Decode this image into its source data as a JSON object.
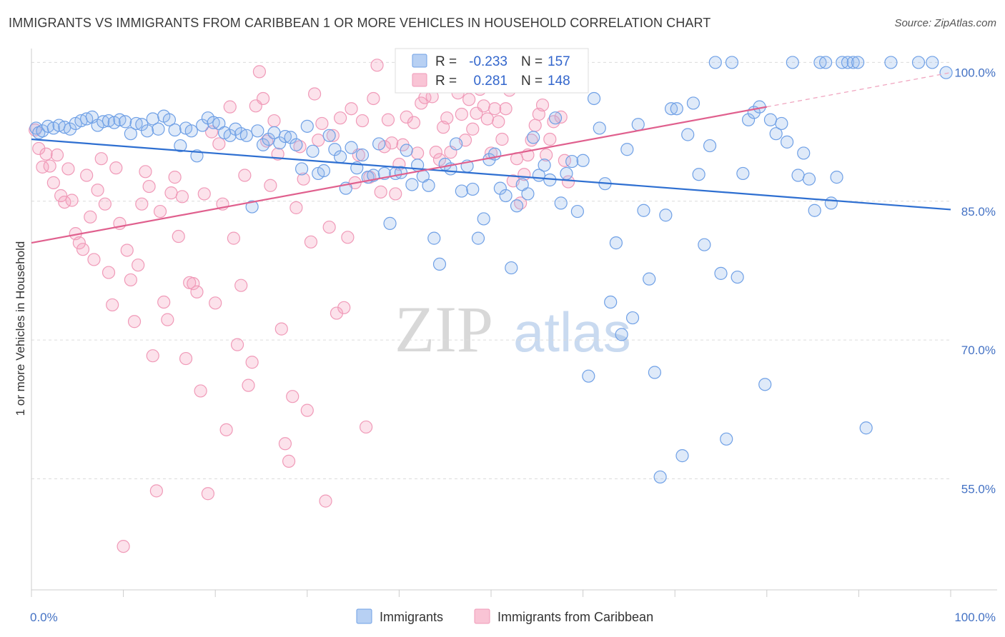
{
  "title": "IMMIGRANTS VS IMMIGRANTS FROM CARIBBEAN 1 OR MORE VEHICLES IN HOUSEHOLD CORRELATION CHART",
  "source": "Source: ZipAtlas.com",
  "watermark": {
    "zip": "ZIP",
    "atlas": "atlas"
  },
  "stats_legend": {
    "r_label": "R =",
    "n_label": "N =",
    "rows": [
      {
        "r": "-0.233",
        "n": "157",
        "color": "#6fa0e6"
      },
      {
        "r": "0.281",
        "n": "148",
        "color": "#f09ab8"
      }
    ]
  },
  "bottom_legend": [
    "Immigrants",
    "Immigrants from Caribbean"
  ],
  "chart_data": {
    "type": "scatter",
    "ylabel": "1 or more Vehicles in Household",
    "xlabel": "",
    "x_ticks": [
      "0.0%",
      "100.0%"
    ],
    "y_ticks": [
      "100.0%",
      "85.0%",
      "70.0%",
      "55.0%"
    ],
    "xlim": [
      0,
      100
    ],
    "ylim": [
      43,
      101.5
    ],
    "colors": {
      "blue": "#4a86d8",
      "pink": "#e86d98",
      "blue_line": "#2e6fd1",
      "pink_line": "#e0608e"
    },
    "series": [
      {
        "name": "Immigrants",
        "trend": [
          [
            0,
            91.7
          ],
          [
            100,
            84.1
          ]
        ],
        "points": [
          [
            0.5,
            92.9
          ],
          [
            0.8,
            92.4
          ],
          [
            1.2,
            92.6
          ],
          [
            1.8,
            93.1
          ],
          [
            2.4,
            92.9
          ],
          [
            3.0,
            93.2
          ],
          [
            3.6,
            93.0
          ],
          [
            4.2,
            92.8
          ],
          [
            4.8,
            93.4
          ],
          [
            5.4,
            93.7
          ],
          [
            6.0,
            93.9
          ],
          [
            6.6,
            94.1
          ],
          [
            7.2,
            93.2
          ],
          [
            7.8,
            93.6
          ],
          [
            8.4,
            93.7
          ],
          [
            9.0,
            93.5
          ],
          [
            9.6,
            93.8
          ],
          [
            10.2,
            93.6
          ],
          [
            10.8,
            92.3
          ],
          [
            11.4,
            93.4
          ],
          [
            12.0,
            93.3
          ],
          [
            12.6,
            92.6
          ],
          [
            13.2,
            93.9
          ],
          [
            13.8,
            92.8
          ],
          [
            14.4,
            94.2
          ],
          [
            15.0,
            93.8
          ],
          [
            15.6,
            92.7
          ],
          [
            16.2,
            91.0
          ],
          [
            16.8,
            92.9
          ],
          [
            17.4,
            92.6
          ],
          [
            18.0,
            89.9
          ],
          [
            18.6,
            93.2
          ],
          [
            19.2,
            94.0
          ],
          [
            19.8,
            93.5
          ],
          [
            20.4,
            93.4
          ],
          [
            21.0,
            92.4
          ],
          [
            21.6,
            92.1
          ],
          [
            22.2,
            92.8
          ],
          [
            22.8,
            92.3
          ],
          [
            23.4,
            92.1
          ],
          [
            24.0,
            84.4
          ],
          [
            24.6,
            92.6
          ],
          [
            25.2,
            91.1
          ],
          [
            25.8,
            91.7
          ],
          [
            26.4,
            92.4
          ],
          [
            27.0,
            91.3
          ],
          [
            27.6,
            92.0
          ],
          [
            28.2,
            91.9
          ],
          [
            28.8,
            91.1
          ],
          [
            29.4,
            88.5
          ],
          [
            30.0,
            93.1
          ],
          [
            30.6,
            90.4
          ],
          [
            31.2,
            88.0
          ],
          [
            31.8,
            88.3
          ],
          [
            32.4,
            92.1
          ],
          [
            33.0,
            90.6
          ],
          [
            33.6,
            89.8
          ],
          [
            34.2,
            86.4
          ],
          [
            34.8,
            90.8
          ],
          [
            35.4,
            88.6
          ],
          [
            36.0,
            90.0
          ],
          [
            36.6,
            87.6
          ],
          [
            37.2,
            87.8
          ],
          [
            37.8,
            91.2
          ],
          [
            38.4,
            88.0
          ],
          [
            39.0,
            82.6
          ],
          [
            39.6,
            88.0
          ],
          [
            40.2,
            88.1
          ],
          [
            40.8,
            90.5
          ],
          [
            41.4,
            86.8
          ],
          [
            42.0,
            88.9
          ],
          [
            42.6,
            87.7
          ],
          [
            43.2,
            86.7
          ],
          [
            43.8,
            81.0
          ],
          [
            44.4,
            78.2
          ],
          [
            45.0,
            89.0
          ],
          [
            45.6,
            88.5
          ],
          [
            46.2,
            91.2
          ],
          [
            46.8,
            86.1
          ],
          [
            47.4,
            88.8
          ],
          [
            48.0,
            86.3
          ],
          [
            48.6,
            81.0
          ],
          [
            49.2,
            83.1
          ],
          [
            49.8,
            89.5
          ],
          [
            50.4,
            90.1
          ],
          [
            51.0,
            86.4
          ],
          [
            51.6,
            85.6
          ],
          [
            52.2,
            77.8
          ],
          [
            52.8,
            84.5
          ],
          [
            53.4,
            86.8
          ],
          [
            54.0,
            85.8
          ],
          [
            54.6,
            91.9
          ],
          [
            55.2,
            87.8
          ],
          [
            55.8,
            88.9
          ],
          [
            56.4,
            87.3
          ],
          [
            57.0,
            94.0
          ],
          [
            57.6,
            84.8
          ],
          [
            58.2,
            88.0
          ],
          [
            58.8,
            89.3
          ],
          [
            59.4,
            83.9
          ],
          [
            60.0,
            89.4
          ],
          [
            60.6,
            66.1
          ],
          [
            61.2,
            96.1
          ],
          [
            61.8,
            92.9
          ],
          [
            62.4,
            86.9
          ],
          [
            63.0,
            74.1
          ],
          [
            63.6,
            80.5
          ],
          [
            64.2,
            70.6
          ],
          [
            64.8,
            90.6
          ],
          [
            65.4,
            72.4
          ],
          [
            66.0,
            93.3
          ],
          [
            66.6,
            84.0
          ],
          [
            67.2,
            76.6
          ],
          [
            67.8,
            66.5
          ],
          [
            68.4,
            55.2
          ],
          [
            69.0,
            83.5
          ],
          [
            69.6,
            95.0
          ],
          [
            70.2,
            95.0
          ],
          [
            70.8,
            57.5
          ],
          [
            71.4,
            92.2
          ],
          [
            72.0,
            95.6
          ],
          [
            72.6,
            87.9
          ],
          [
            73.2,
            80.3
          ],
          [
            73.8,
            91.0
          ],
          [
            74.4,
            100.0
          ],
          [
            75.0,
            77.2
          ],
          [
            75.6,
            59.3
          ],
          [
            76.2,
            100.0
          ],
          [
            76.8,
            76.8
          ],
          [
            77.4,
            88.0
          ],
          [
            78.0,
            93.8
          ],
          [
            78.6,
            94.6
          ],
          [
            79.2,
            95.2
          ],
          [
            79.8,
            65.2
          ],
          [
            80.4,
            93.8
          ],
          [
            81.0,
            92.3
          ],
          [
            81.6,
            93.4
          ],
          [
            82.2,
            91.4
          ],
          [
            82.8,
            100.0
          ],
          [
            83.4,
            87.8
          ],
          [
            84.0,
            90.2
          ],
          [
            84.6,
            87.4
          ],
          [
            85.2,
            84.0
          ],
          [
            85.8,
            100.0
          ],
          [
            86.4,
            100.0
          ],
          [
            87.0,
            84.8
          ],
          [
            87.6,
            87.6
          ],
          [
            88.2,
            100.0
          ],
          [
            88.8,
            100.0
          ],
          [
            89.4,
            100.0
          ],
          [
            89.9,
            100.0
          ],
          [
            90.8,
            60.5
          ],
          [
            93.5,
            100.0
          ],
          [
            96.5,
            100.0
          ],
          [
            98.0,
            100.0
          ],
          [
            99.5,
            98.9
          ]
        ]
      },
      {
        "name": "Immigrants from Caribbean",
        "trend": [
          [
            0,
            80.5
          ],
          [
            80,
            95.2
          ]
        ],
        "trend_dashed": [
          [
            80,
            95.2
          ],
          [
            100,
            98.9
          ]
        ],
        "points": [
          [
            0.4,
            92.7
          ],
          [
            0.8,
            90.7
          ],
          [
            1.2,
            88.7
          ],
          [
            1.6,
            90.1
          ],
          [
            2.0,
            88.8
          ],
          [
            2.4,
            87.0
          ],
          [
            2.8,
            90.0
          ],
          [
            3.2,
            85.6
          ],
          [
            3.6,
            84.9
          ],
          [
            4.0,
            88.5
          ],
          [
            4.4,
            85.1
          ],
          [
            4.8,
            81.5
          ],
          [
            5.2,
            80.5
          ],
          [
            5.6,
            79.8
          ],
          [
            6.0,
            87.8
          ],
          [
            6.4,
            83.3
          ],
          [
            6.8,
            78.7
          ],
          [
            7.2,
            86.2
          ],
          [
            7.6,
            89.6
          ],
          [
            8.0,
            84.7
          ],
          [
            8.4,
            77.3
          ],
          [
            8.8,
            73.8
          ],
          [
            9.2,
            88.6
          ],
          [
            9.6,
            82.6
          ],
          [
            10.0,
            47.7
          ],
          [
            10.4,
            79.7
          ],
          [
            10.8,
            76.5
          ],
          [
            11.2,
            72.0
          ],
          [
            11.6,
            78.1
          ],
          [
            12.0,
            84.7
          ],
          [
            12.4,
            88.2
          ],
          [
            12.8,
            86.6
          ],
          [
            13.2,
            68.3
          ],
          [
            13.6,
            53.7
          ],
          [
            14.0,
            83.9
          ],
          [
            14.4,
            74.1
          ],
          [
            14.8,
            72.2
          ],
          [
            15.2,
            85.9
          ],
          [
            15.6,
            87.6
          ],
          [
            16.0,
            81.2
          ],
          [
            16.4,
            85.5
          ],
          [
            16.8,
            68.0
          ],
          [
            17.2,
            76.2
          ],
          [
            17.6,
            76.1
          ],
          [
            18.0,
            75.2
          ],
          [
            18.4,
            64.5
          ],
          [
            18.8,
            85.8
          ],
          [
            19.2,
            53.4
          ],
          [
            19.6,
            92.5
          ],
          [
            20.0,
            74.0
          ],
          [
            20.4,
            91.2
          ],
          [
            20.8,
            84.7
          ],
          [
            21.2,
            60.3
          ],
          [
            21.6,
            95.2
          ],
          [
            22.0,
            81.0
          ],
          [
            22.4,
            69.5
          ],
          [
            22.8,
            75.9
          ],
          [
            23.2,
            87.8
          ],
          [
            23.6,
            65.1
          ],
          [
            24.0,
            67.6
          ],
          [
            24.4,
            95.3
          ],
          [
            24.8,
            99.0
          ],
          [
            25.2,
            96.1
          ],
          [
            25.6,
            91.5
          ],
          [
            26.0,
            86.7
          ],
          [
            26.4,
            93.7
          ],
          [
            26.8,
            90.1
          ],
          [
            27.2,
            71.2
          ],
          [
            27.6,
            58.8
          ],
          [
            28.0,
            56.9
          ],
          [
            28.4,
            63.9
          ],
          [
            28.8,
            84.3
          ],
          [
            29.2,
            90.9
          ],
          [
            29.6,
            87.4
          ],
          [
            30.0,
            62.4
          ],
          [
            30.4,
            80.6
          ],
          [
            30.8,
            96.6
          ],
          [
            31.2,
            91.6
          ],
          [
            31.6,
            93.4
          ],
          [
            32.0,
            52.6
          ],
          [
            32.4,
            82.2
          ],
          [
            32.8,
            92.1
          ],
          [
            33.2,
            72.9
          ],
          [
            33.6,
            94.0
          ],
          [
            34.0,
            73.5
          ],
          [
            34.4,
            81.1
          ],
          [
            34.8,
            95.0
          ],
          [
            35.2,
            87.0
          ],
          [
            35.6,
            90.0
          ],
          [
            36.0,
            93.7
          ],
          [
            36.4,
            60.6
          ],
          [
            36.8,
            87.6
          ],
          [
            37.2,
            96.1
          ],
          [
            37.6,
            99.7
          ],
          [
            38.0,
            86.0
          ],
          [
            38.4,
            90.9
          ],
          [
            38.8,
            93.8
          ],
          [
            39.2,
            91.3
          ],
          [
            39.6,
            85.8
          ],
          [
            40.0,
            89.0
          ],
          [
            40.4,
            91.1
          ],
          [
            40.8,
            94.1
          ],
          [
            41.2,
            97.9
          ],
          [
            41.6,
            93.5
          ],
          [
            42.0,
            90.2
          ],
          [
            42.4,
            95.6
          ],
          [
            42.8,
            96.2
          ],
          [
            43.2,
            98.4
          ],
          [
            43.6,
            96.3
          ],
          [
            44.0,
            90.3
          ],
          [
            44.4,
            89.5
          ],
          [
            44.8,
            93.0
          ],
          [
            45.2,
            94.0
          ],
          [
            45.6,
            90.3
          ],
          [
            46.0,
            100.0
          ],
          [
            46.4,
            96.7
          ],
          [
            46.8,
            94.4
          ],
          [
            47.2,
            91.6
          ],
          [
            47.6,
            96.0
          ],
          [
            48.0,
            92.8
          ],
          [
            48.4,
            94.5
          ],
          [
            48.8,
            97.1
          ],
          [
            49.2,
            95.3
          ],
          [
            49.6,
            93.9
          ],
          [
            50.0,
            90.2
          ],
          [
            50.4,
            95.0
          ],
          [
            50.8,
            93.6
          ],
          [
            51.2,
            91.7
          ],
          [
            51.6,
            95.0
          ],
          [
            52.0,
            97.0
          ],
          [
            52.4,
            87.2
          ],
          [
            52.8,
            89.6
          ],
          [
            53.2,
            84.8
          ],
          [
            53.6,
            87.9
          ],
          [
            54.0,
            90.0
          ],
          [
            54.4,
            91.6
          ],
          [
            54.8,
            93.2
          ],
          [
            55.2,
            94.4
          ],
          [
            55.6,
            95.4
          ],
          [
            56.0,
            90.0
          ],
          [
            56.4,
            91.7
          ],
          [
            56.8,
            93.6
          ],
          [
            57.2,
            100.0
          ],
          [
            57.6,
            94.1
          ],
          [
            58.0,
            89.4
          ],
          [
            58.4,
            87.1
          ]
        ]
      }
    ]
  }
}
